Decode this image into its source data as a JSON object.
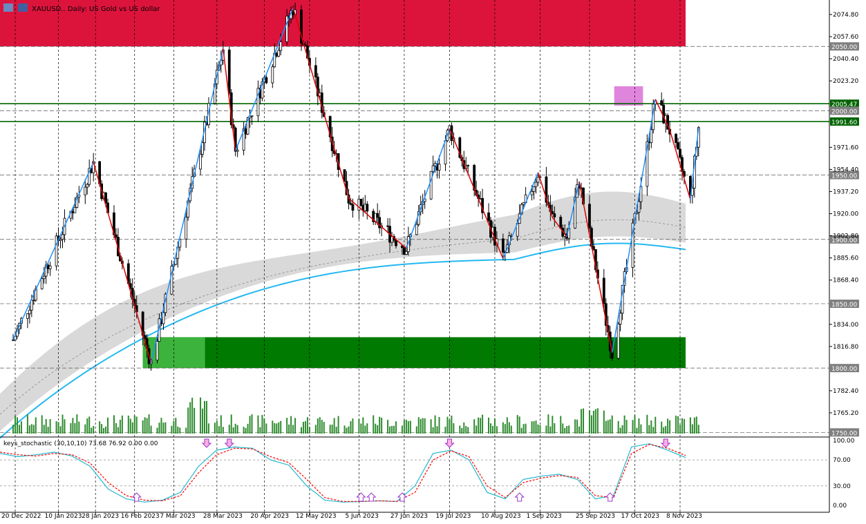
{
  "window": {
    "title": "XAUUSD.. Daily:  US Gold vs US dollar",
    "indicator_label": "keys_stochastic (30,10,10) 73.68 76.92 0.00 0.00"
  },
  "colors": {
    "background": "#ffffff",
    "grid": "#000000",
    "bull_candle": "#000000",
    "bear_candle": "#000000",
    "zigzag_up": "#1e90ff",
    "zigzag_down": "#e00000",
    "ma_line": "#22b8f0",
    "band_fill": "#d9d9d9",
    "resistance_zone": "#dc143c",
    "support_zone": "#007a00",
    "support_zone_light": "#3cb33c",
    "target_zone": "#da70d6",
    "level_line": "#006400",
    "volume": "#2e8b2e",
    "stoch_main": "#20b8d0",
    "stoch_signal": "#ff0000",
    "arrow": "#9933cc"
  },
  "chart_data": [
    {
      "type": "candlestick",
      "symbol": "XAUUSD..",
      "timeframe": "Daily",
      "title": "XAUUSD.. Daily:  US Gold vs US dollar",
      "ylim": [
        1750,
        2090
      ],
      "y_ticks": [
        "2074.80",
        "2057.60",
        "2040.40",
        "2023.20",
        "1971.60",
        "1954.40",
        "1937.20",
        "1920.00",
        "1902.80",
        "1885.60",
        "1868.40",
        "1834.00",
        "1816.80",
        "1782.40",
        "1765.20"
      ],
      "x_ticks": [
        "20 Dec 2022",
        "10 Jan 2023",
        "28 Jan 2023",
        "16 Feb 2023",
        "7 Mar 2023",
        "28 Mar 2023",
        "20 Apr 2023",
        "12 May 2023",
        "5 Jun 2023",
        "27 Jun 2023",
        "19 Jul 2023",
        "10 Aug 2023",
        "1 Sep 2023",
        "25 Sep 2023",
        "17 Oct 2023",
        "8 Nov 2023"
      ],
      "price_labels": [
        {
          "text": "2050.00",
          "value": 2050.0,
          "style": "grey"
        },
        {
          "text": "2005.47",
          "value": 2005.47,
          "style": "green"
        },
        {
          "text": "2000.00",
          "value": 2000.0,
          "style": "grey"
        },
        {
          "text": "1991.60",
          "value": 1991.6,
          "style": "green"
        },
        {
          "text": "1950.00",
          "value": 1950.0,
          "style": "grey"
        },
        {
          "text": "1900.00",
          "value": 1900.0,
          "style": "grey"
        },
        {
          "text": "1850.00",
          "value": 1850.0,
          "style": "grey"
        },
        {
          "text": "1800.00",
          "value": 1800.0,
          "style": "grey"
        },
        {
          "text": "1750.00",
          "value": 1750.0,
          "style": "grey"
        }
      ],
      "zones": [
        {
          "name": "resistance",
          "from": 2050,
          "to": 2092,
          "x_from": "20 Dec 2022",
          "x_to": "17 Nov 2023"
        },
        {
          "name": "support",
          "from": 1800,
          "to": 1824,
          "x_from": "20 Feb 2023",
          "x_to": "17 Nov 2023"
        },
        {
          "name": "target",
          "from": 2004,
          "to": 2019,
          "x_from": "7 Oct 2023",
          "x_to": "21 Oct 2023"
        }
      ],
      "zigzag": [
        {
          "x": "19 Dec 2022",
          "y": 1822
        },
        {
          "x": "27 Jan 2023",
          "y": 1960
        },
        {
          "x": "24 Feb 2023",
          "y": 1804
        },
        {
          "x": "31 Mar 2023",
          "y": 2048
        },
        {
          "x": "6 Apr 2023",
          "y": 1969
        },
        {
          "x": "4 May 2023",
          "y": 2080
        },
        {
          "x": "31 May 2023",
          "y": 1932
        },
        {
          "x": "28 Jun 2023",
          "y": 1893
        },
        {
          "x": "19 Jul 2023",
          "y": 1986
        },
        {
          "x": "14 Aug 2023",
          "y": 1885
        },
        {
          "x": "31 Aug 2023",
          "y": 1952
        },
        {
          "x": "7 Sep 2023",
          "y": 1917
        },
        {
          "x": "14 Sep 2023",
          "y": 1902
        },
        {
          "x": "20 Sep 2023",
          "y": 1945
        },
        {
          "x": "6 Oct 2023",
          "y": 1812
        },
        {
          "x": "27 Oct 2023",
          "y": 2009
        },
        {
          "x": "3 Nov 2023",
          "y": 1985
        },
        {
          "x": "13 Nov 2023",
          "y": 1931
        },
        {
          "x": "17 Nov 2023",
          "y": 1987
        }
      ]
    },
    {
      "type": "line",
      "name": "keys_stochastic (30,10,10)",
      "ylim": [
        0,
        100
      ],
      "y_ticks": [
        "100.00",
        "70.00",
        "30.00",
        "0.00"
      ],
      "levels": [
        70,
        30
      ],
      "series": [
        {
          "name": "main",
          "values": [
            80,
            75,
            78,
            82,
            76,
            60,
            25,
            10,
            5,
            8,
            20,
            60,
            85,
            90,
            88,
            70,
            62,
            30,
            8,
            5,
            6,
            7,
            6,
            30,
            80,
            85,
            70,
            20,
            10,
            40,
            45,
            48,
            40,
            10,
            15,
            90,
            95,
            85,
            73.68
          ]
        },
        {
          "name": "signal",
          "values": [
            82,
            78,
            76,
            80,
            78,
            65,
            35,
            15,
            8,
            7,
            15,
            50,
            78,
            88,
            87,
            75,
            66,
            40,
            12,
            6,
            6,
            7,
            6,
            20,
            70,
            84,
            75,
            30,
            12,
            35,
            42,
            46,
            43,
            15,
            12,
            80,
            94,
            88,
            76.92
          ]
        }
      ],
      "arrows": [
        {
          "x": "17 Feb 2023",
          "dir": "up"
        },
        {
          "x": "23 Mar 2023",
          "dir": "down"
        },
        {
          "x": "3 Apr 2023",
          "dir": "down"
        },
        {
          "x": "6 Jun 2023",
          "dir": "up"
        },
        {
          "x": "11 Jun 2023",
          "dir": "up"
        },
        {
          "x": "26 Jun 2023",
          "dir": "up"
        },
        {
          "x": "19 Jul 2023",
          "dir": "down"
        },
        {
          "x": "22 Aug 2023",
          "dir": "up"
        },
        {
          "x": "5 Oct 2023",
          "dir": "up"
        },
        {
          "x": "1 Nov 2023",
          "dir": "down"
        }
      ]
    }
  ]
}
